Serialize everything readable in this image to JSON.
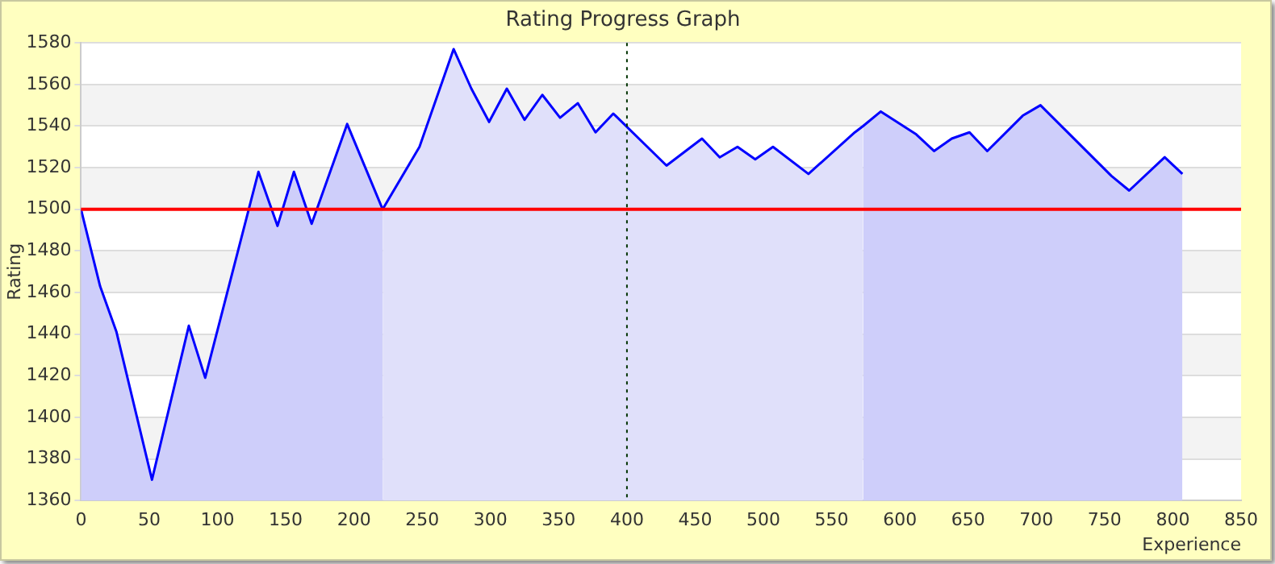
{
  "chart_data": {
    "type": "line",
    "title": "Rating Progress Graph",
    "xlabel": "Experience",
    "ylabel": "Rating",
    "xlim": [
      0,
      850
    ],
    "xticks": [
      0,
      50,
      100,
      150,
      200,
      250,
      300,
      350,
      400,
      450,
      500,
      550,
      600,
      650,
      700,
      750,
      800,
      850
    ],
    "ylim": [
      1360,
      1580
    ],
    "yticks": [
      1360,
      1380,
      1400,
      1420,
      1440,
      1460,
      1480,
      1500,
      1520,
      1540,
      1560,
      1580
    ],
    "grid": "y",
    "marker": "none",
    "line_style": "solid",
    "series": [
      {
        "type": "area",
        "color": "#cecefa",
        "x": [
          0,
          14,
          26,
          52,
          79,
          91,
          130,
          144,
          156,
          169,
          195,
          221
        ],
        "values": [
          1500,
          1463,
          1441,
          1370,
          1444,
          1419,
          1518,
          1492,
          1518,
          1493,
          1541,
          1500
        ]
      },
      {
        "type": "area",
        "color": "#e0e0fa",
        "x": [
          221,
          248,
          273,
          286,
          299,
          312,
          325,
          338,
          351,
          364,
          377,
          390,
          429,
          455,
          468,
          481,
          494,
          507,
          533,
          567,
          573
        ],
        "values": [
          1500,
          1530,
          1577,
          1558,
          1542,
          1558,
          1543,
          1555,
          1544,
          1551,
          1537,
          1546,
          1521,
          1534,
          1525,
          1530,
          1524,
          1530,
          1517,
          1537,
          1540
        ]
      },
      {
        "type": "area",
        "color": "#cecefa",
        "x": [
          573,
          586,
          612,
          625,
          638,
          651,
          664,
          690,
          703,
          755,
          768,
          794,
          807
        ],
        "values": [
          1540,
          1547,
          1536,
          1528,
          1534,
          1537,
          1528,
          1545,
          1550,
          1516,
          1509,
          1525,
          1517
        ]
      },
      {
        "color": "#0000ff",
        "x": [
          0,
          14,
          26,
          52,
          79,
          91,
          130,
          144,
          156,
          169,
          195,
          221,
          248,
          273,
          286,
          299,
          312,
          325,
          338,
          351,
          364,
          377,
          390,
          429,
          455,
          468,
          481,
          494,
          507,
          533,
          567,
          573,
          586,
          612,
          625,
          638,
          651,
          664,
          690,
          703,
          755,
          768,
          794,
          807
        ],
        "values": [
          1500,
          1463,
          1441,
          1370,
          1444,
          1419,
          1518,
          1492,
          1518,
          1493,
          1541,
          1500,
          1530,
          1577,
          1558,
          1542,
          1558,
          1543,
          1555,
          1544,
          1551,
          1537,
          1546,
          1521,
          1534,
          1525,
          1530,
          1524,
          1530,
          1517,
          1537,
          1540,
          1547,
          1536,
          1528,
          1534,
          1537,
          1528,
          1545,
          1550,
          1516,
          1509,
          1525,
          1517
        ]
      }
    ],
    "ref_lines": [
      {
        "axis": "y",
        "value": 1500,
        "color": "#ff0000",
        "line_style": "solid"
      },
      {
        "axis": "x",
        "value": 400,
        "color": "#003300",
        "line_style": "dotted"
      }
    ]
  }
}
